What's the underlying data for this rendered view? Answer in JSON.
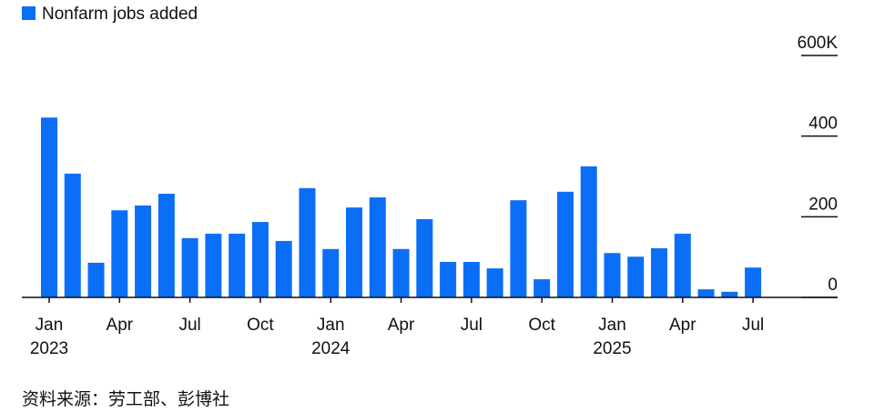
{
  "chart_data": {
    "type": "bar",
    "series": [
      {
        "name": "Nonfarm jobs added",
        "color": "#0b6ef6",
        "values": [
          446,
          307,
          86,
          216,
          228,
          257,
          147,
          158,
          158,
          187,
          140,
          271,
          120,
          223,
          248,
          120,
          194,
          88,
          88,
          72,
          241,
          45,
          262,
          325,
          110,
          101,
          122,
          158,
          20,
          14,
          74
        ]
      }
    ],
    "categories": [
      "Jan",
      null,
      null,
      "Apr",
      null,
      null,
      "Jul",
      null,
      null,
      "Oct",
      null,
      null,
      "Jan",
      null,
      null,
      "Apr",
      null,
      null,
      "Jul",
      null,
      null,
      "Oct",
      null,
      null,
      "Jan",
      null,
      null,
      "Apr",
      null,
      null,
      "Jul"
    ],
    "years": [
      "2023",
      null,
      null,
      null,
      null,
      null,
      null,
      null,
      null,
      null,
      null,
      null,
      "2024",
      null,
      null,
      null,
      null,
      null,
      null,
      null,
      null,
      null,
      null,
      null,
      "2025",
      null,
      null,
      null,
      null,
      null,
      null
    ],
    "ylim": [
      0,
      600
    ],
    "yticks": [
      0,
      200,
      400,
      {
        "value": 600,
        "label": "600K"
      }
    ],
    "legend": "top-left",
    "source": "资料来源：劳工部、彭博社"
  }
}
